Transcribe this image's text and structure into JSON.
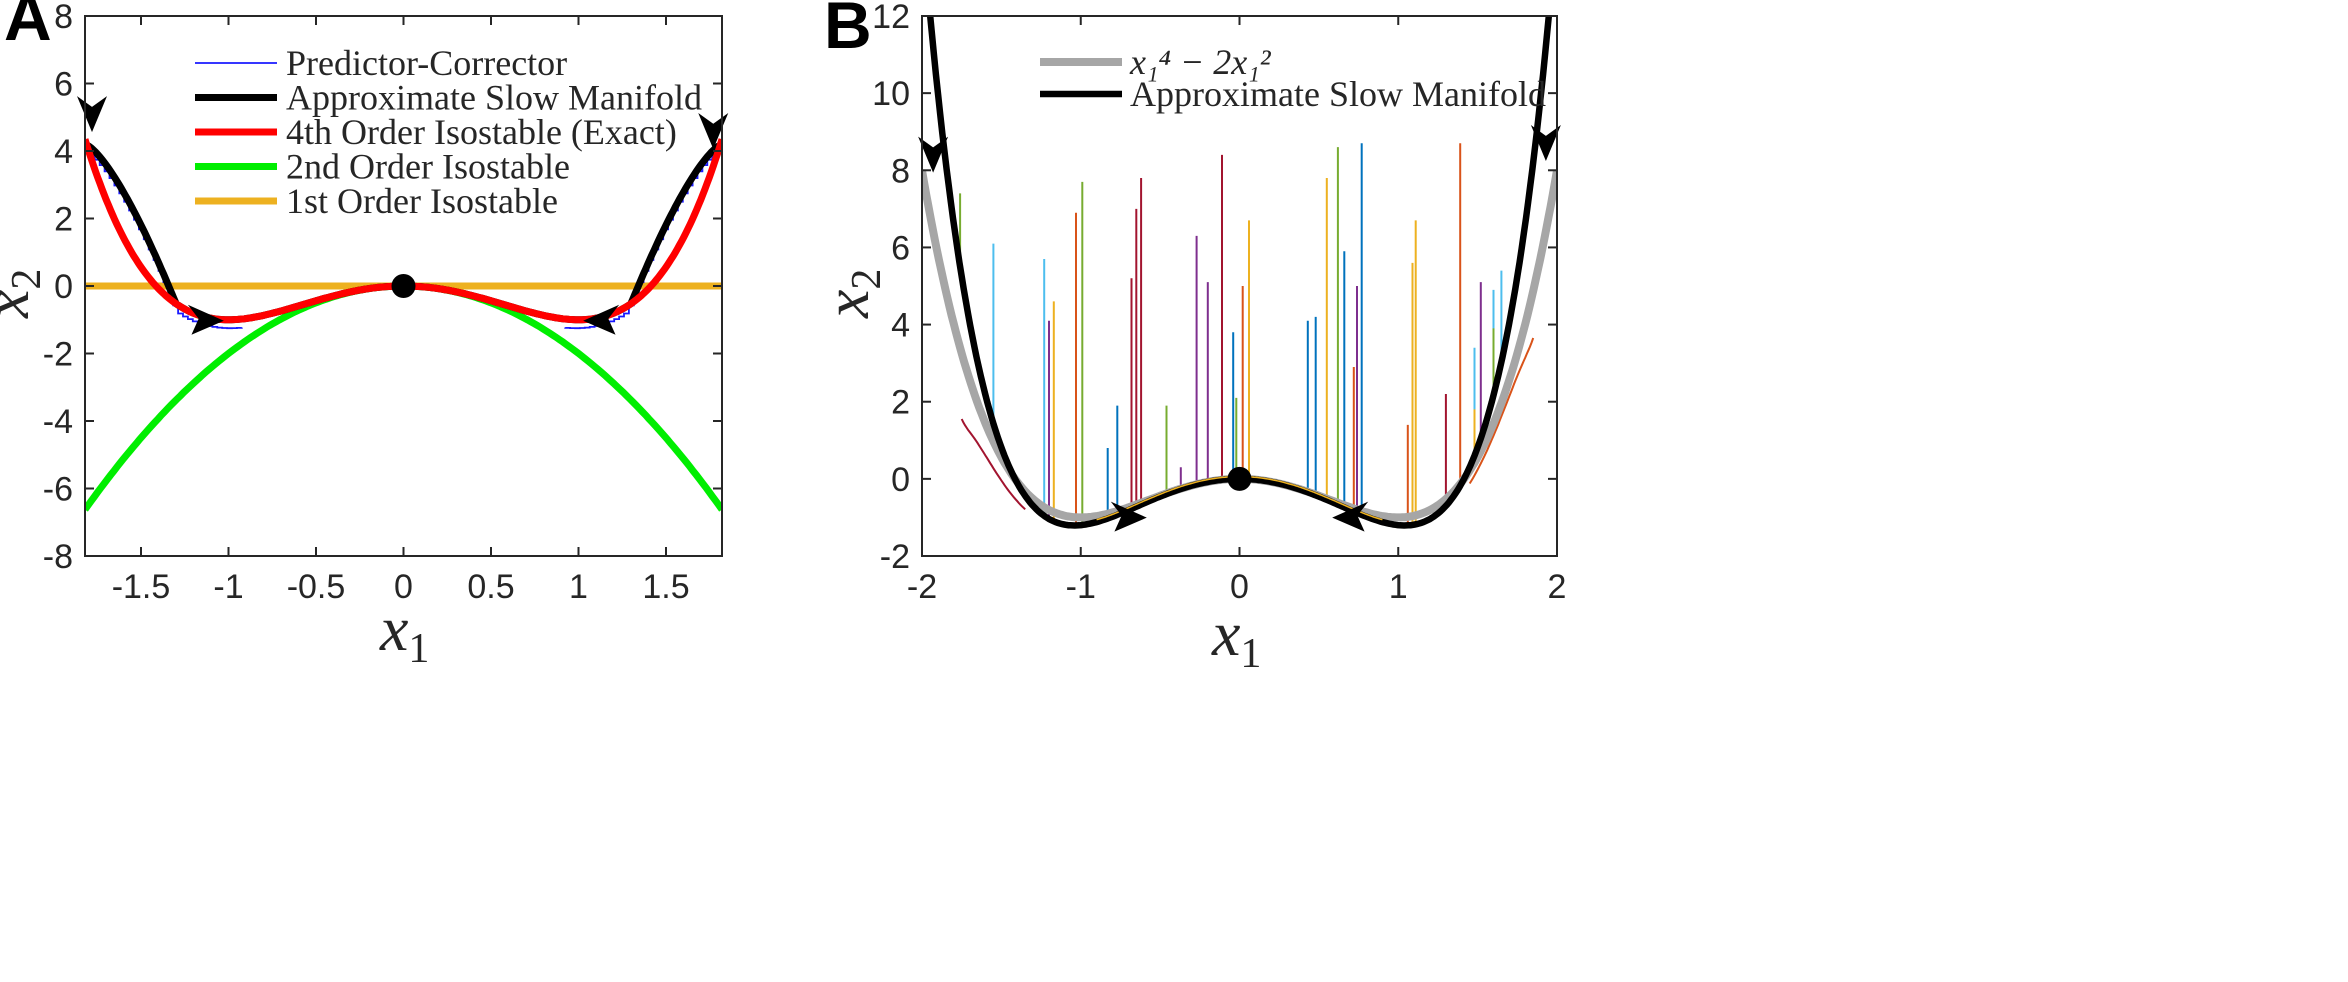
{
  "chart_data": [
    {
      "panel_label": "A",
      "type": "line",
      "xlabel": "x",
      "xlabel_sub": "1",
      "ylabel": "x",
      "ylabel_sub": "2",
      "xlim": [
        -1.82,
        1.82
      ],
      "ylim": [
        -8,
        8
      ],
      "xticks": [
        -1.5,
        -1,
        -0.5,
        0,
        0.5,
        1,
        1.5
      ],
      "xtick_labels": [
        "-1.5",
        "-1",
        "-0.5",
        "0",
        "0.5",
        "1",
        "1.5"
      ],
      "yticks": [
        -8,
        -6,
        -4,
        -2,
        0,
        2,
        4,
        6,
        8
      ],
      "ytick_labels": [
        "-8",
        "-6",
        "-4",
        "-2",
        "0",
        "2",
        "4",
        "6",
        "8"
      ],
      "legend": {
        "placement": "top-center",
        "entries": [
          {
            "label": "Predictor-Corrector",
            "color": "#1a1aff"
          },
          {
            "label": "Approximate Slow Manifold",
            "color": "#000000"
          },
          {
            "label": "4th Order Isostable (Exact)",
            "color": "#ff0000"
          },
          {
            "label": "2nd Order Isostable",
            "color": "#00ee00"
          },
          {
            "label": "1st Order Isostable",
            "color": "#edb120"
          }
        ]
      },
      "series": [
        {
          "name": "1st Order Isostable",
          "formula": "0",
          "color": "#edb120"
        },
        {
          "name": "2nd Order Isostable",
          "formula": "-2 x^2",
          "color": "#00ee00"
        },
        {
          "name": "Predictor-Corrector",
          "formula": "staircase approximation of slow manifold",
          "color": "#1a1aff"
        },
        {
          "name": "Approximate Slow Manifold",
          "formula": "x^4 - 2x^2 (|x|<=1.3), saturating to 4.2 at |x|=1.82",
          "color": "#000000"
        },
        {
          "name": "4th Order Isostable (Exact)",
          "formula": "x^4 - 2 x^2",
          "color": "#ff0000"
        }
      ],
      "fixed_point": [
        0,
        0
      ],
      "arrows": [
        {
          "x": -1.78,
          "y": 5.2,
          "dir": "down"
        },
        {
          "x": 1.77,
          "y": 4.7,
          "dir": "down"
        },
        {
          "x": -1.15,
          "y": -0.85,
          "dir": "right"
        },
        {
          "x": 1.15,
          "y": -0.85,
          "dir": "left"
        }
      ]
    },
    {
      "panel_label": "B",
      "type": "line",
      "xlabel": "x",
      "xlabel_sub": "1",
      "ylabel": "x",
      "ylabel_sub": "2",
      "xlim": [
        -2,
        2
      ],
      "ylim": [
        -2,
        12
      ],
      "xticks": [
        -2,
        -1,
        0,
        1,
        2
      ],
      "xtick_labels": [
        "-2",
        "-1",
        "0",
        "1",
        "2"
      ],
      "yticks": [
        -2,
        0,
        2,
        4,
        6,
        8,
        10,
        12
      ],
      "ytick_labels": [
        "-2",
        "0",
        "2",
        "4",
        "6",
        "8",
        "10",
        "12"
      ],
      "legend": {
        "placement": "top-left",
        "entries": [
          {
            "label": "x₁⁴ − 2x₁²",
            "color": "#a6a6a6"
          },
          {
            "label": "Approximate Slow Manifold",
            "color": "#000000"
          }
        ]
      },
      "series": [
        {
          "name": "x1^4 - 2x1^2",
          "formula": "x^4 - 2 x^2",
          "color": "#a6a6a6"
        },
        {
          "name": "Approximate Slow Manifold",
          "formula": "x^4 - 2 x^2 + 0.2 x^6 - 0.4 x^4 (approx.)",
          "color": "#000000"
        }
      ],
      "trajectories": [
        {
          "x0": -1.76,
          "y0": 7.4,
          "color": "#77ac30"
        },
        {
          "x0": -1.55,
          "y0": 6.1,
          "color": "#4dbeee"
        },
        {
          "x0": -1.23,
          "y0": 5.7,
          "color": "#4dbeee"
        },
        {
          "x0": -1.17,
          "y0": 4.6,
          "color": "#edb120"
        },
        {
          "x0": -1.2,
          "y0": 4.1,
          "color": "#7e2f8e"
        },
        {
          "x0": -1.03,
          "y0": 6.9,
          "color": "#d95319"
        },
        {
          "x0": -0.99,
          "y0": 7.7,
          "color": "#77ac30"
        },
        {
          "x0": -0.77,
          "y0": 1.9,
          "color": "#0072bd"
        },
        {
          "x0": -0.83,
          "y0": 0.8,
          "color": "#0072bd"
        },
        {
          "x0": -0.62,
          "y0": 7.8,
          "color": "#a2142f"
        },
        {
          "x0": -0.65,
          "y0": 7.0,
          "color": "#a2142f"
        },
        {
          "x0": -0.68,
          "y0": 5.2,
          "color": "#a2142f"
        },
        {
          "x0": -0.46,
          "y0": 1.9,
          "color": "#77ac30"
        },
        {
          "x0": -0.37,
          "y0": 0.3,
          "color": "#7e2f8e"
        },
        {
          "x0": -0.27,
          "y0": 6.3,
          "color": "#7e2f8e"
        },
        {
          "x0": -0.2,
          "y0": 5.1,
          "color": "#7e2f8e"
        },
        {
          "x0": -0.11,
          "y0": 8.4,
          "color": "#a2142f"
        },
        {
          "x0": -0.04,
          "y0": 3.8,
          "color": "#0072bd"
        },
        {
          "x0": -0.02,
          "y0": 2.1,
          "color": "#77ac30"
        },
        {
          "x0": 0.02,
          "y0": 5.0,
          "color": "#d95319"
        },
        {
          "x0": 0.06,
          "y0": 6.7,
          "color": "#edb120"
        },
        {
          "x0": 0.43,
          "y0": 4.1,
          "color": "#0072bd"
        },
        {
          "x0": 0.48,
          "y0": 4.2,
          "color": "#0072bd"
        },
        {
          "x0": 0.55,
          "y0": 7.8,
          "color": "#edb120"
        },
        {
          "x0": 0.62,
          "y0": 8.6,
          "color": "#77ac30"
        },
        {
          "x0": 0.66,
          "y0": 5.9,
          "color": "#0072bd"
        },
        {
          "x0": 0.72,
          "y0": 2.9,
          "color": "#d95319"
        },
        {
          "x0": 0.74,
          "y0": 5.0,
          "color": "#7e2f8e"
        },
        {
          "x0": 0.77,
          "y0": 8.7,
          "color": "#0072bd"
        },
        {
          "x0": 1.09,
          "y0": 5.6,
          "color": "#edb120"
        },
        {
          "x0": 1.11,
          "y0": 6.7,
          "color": "#edb120"
        },
        {
          "x0": 1.06,
          "y0": 1.4,
          "color": "#d95319"
        },
        {
          "x0": 1.3,
          "y0": 2.2,
          "color": "#a2142f"
        },
        {
          "x0": 1.39,
          "y0": 8.7,
          "color": "#d95319"
        },
        {
          "x0": 1.48,
          "y0": 3.4,
          "color": "#4dbeee"
        },
        {
          "x0": 1.52,
          "y0": 5.1,
          "color": "#7e2f8e"
        },
        {
          "x0": 1.6,
          "y0": 4.9,
          "color": "#4dbeee"
        },
        {
          "x0": 1.6,
          "y0": 3.9,
          "color": "#77ac30"
        },
        {
          "x0": 1.48,
          "y0": 1.8,
          "color": "#edb120"
        },
        {
          "x0": 1.65,
          "y0": 5.4,
          "color": "#4dbeee"
        },
        {
          "x0": 1.85,
          "y0": 3.5,
          "color": "#d95319"
        },
        {
          "x0": -1.75,
          "y0": 1.4,
          "color": "#a2142f"
        }
      ],
      "fixed_point": [
        0,
        0
      ],
      "arrows": [
        {
          "x": -1.93,
          "y": 8.5,
          "dir": "down"
        },
        {
          "x": 1.93,
          "y": 8.8,
          "dir": "down"
        },
        {
          "x": -0.72,
          "y": -0.85,
          "dir": "right"
        },
        {
          "x": 0.72,
          "y": -0.85,
          "dir": "left"
        }
      ]
    }
  ]
}
